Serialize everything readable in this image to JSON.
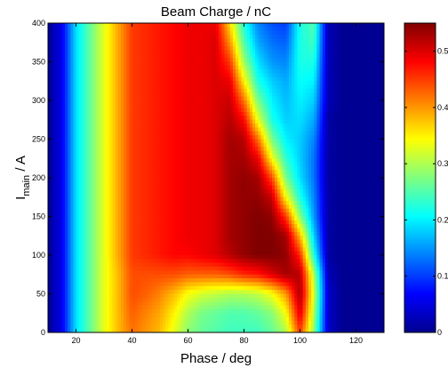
{
  "chart_data": {
    "type": "heatmap",
    "title": "Beam Charge / nC",
    "xlabel": "Phase / deg",
    "ylabel": {
      "main": "I",
      "subscript": "main",
      "suffix": " / A"
    },
    "xlim": [
      10,
      130
    ],
    "ylim": [
      0,
      400
    ],
    "xticks": [
      20,
      40,
      60,
      80,
      100,
      120
    ],
    "yticks": [
      0,
      50,
      100,
      150,
      200,
      250,
      300,
      350,
      400
    ],
    "colorbar": {
      "range": [
        0,
        0.55
      ],
      "ticks": [
        0,
        0.1,
        0.2,
        0.3,
        0.4,
        0.5
      ],
      "colormap": "jet"
    },
    "x": [
      10,
      15,
      20,
      25,
      30,
      35,
      40,
      45,
      50,
      55,
      60,
      65,
      70,
      75,
      80,
      85,
      90,
      95,
      100,
      105,
      110,
      115,
      120,
      125,
      130
    ],
    "y": [
      0,
      25,
      50,
      75,
      100,
      125,
      150,
      175,
      200,
      225,
      250,
      275,
      300,
      325,
      350,
      375,
      400
    ],
    "z": [
      [
        0.01,
        0.06,
        0.19,
        0.26,
        0.33,
        0.38,
        0.42,
        0.4,
        0.38,
        0.33,
        0.28,
        0.26,
        0.25,
        0.24,
        0.24,
        0.24,
        0.26,
        0.3,
        0.45,
        0.28,
        0.04,
        0.01,
        0.01,
        0.01,
        0.01
      ],
      [
        0.01,
        0.06,
        0.19,
        0.26,
        0.33,
        0.38,
        0.43,
        0.41,
        0.39,
        0.35,
        0.3,
        0.27,
        0.26,
        0.25,
        0.25,
        0.26,
        0.28,
        0.34,
        0.5,
        0.3,
        0.04,
        0.01,
        0.01,
        0.01,
        0.01
      ],
      [
        0.01,
        0.06,
        0.19,
        0.26,
        0.33,
        0.38,
        0.44,
        0.43,
        0.41,
        0.38,
        0.34,
        0.32,
        0.31,
        0.3,
        0.3,
        0.31,
        0.34,
        0.4,
        0.53,
        0.32,
        0.04,
        0.01,
        0.01,
        0.01,
        0.01
      ],
      [
        0.01,
        0.06,
        0.19,
        0.26,
        0.33,
        0.38,
        0.44,
        0.44,
        0.44,
        0.44,
        0.43,
        0.43,
        0.43,
        0.44,
        0.46,
        0.47,
        0.5,
        0.53,
        0.52,
        0.3,
        0.03,
        0.01,
        0.01,
        0.01,
        0.01
      ],
      [
        0.01,
        0.06,
        0.19,
        0.26,
        0.33,
        0.39,
        0.45,
        0.46,
        0.47,
        0.48,
        0.48,
        0.49,
        0.5,
        0.52,
        0.54,
        0.55,
        0.55,
        0.54,
        0.46,
        0.22,
        0.02,
        0.01,
        0.01,
        0.01,
        0.01
      ],
      [
        0.01,
        0.06,
        0.19,
        0.26,
        0.33,
        0.39,
        0.45,
        0.46,
        0.47,
        0.48,
        0.49,
        0.49,
        0.5,
        0.53,
        0.54,
        0.55,
        0.55,
        0.53,
        0.38,
        0.18,
        0.02,
        0.01,
        0.01,
        0.01,
        0.01
      ],
      [
        0.01,
        0.06,
        0.19,
        0.26,
        0.33,
        0.39,
        0.45,
        0.46,
        0.47,
        0.48,
        0.49,
        0.49,
        0.5,
        0.53,
        0.54,
        0.55,
        0.54,
        0.45,
        0.28,
        0.15,
        0.02,
        0.01,
        0.01,
        0.01,
        0.01
      ],
      [
        0.01,
        0.06,
        0.19,
        0.26,
        0.33,
        0.39,
        0.45,
        0.46,
        0.47,
        0.48,
        0.49,
        0.49,
        0.5,
        0.53,
        0.54,
        0.54,
        0.51,
        0.34,
        0.22,
        0.14,
        0.02,
        0.01,
        0.01,
        0.01,
        0.01
      ],
      [
        0.01,
        0.06,
        0.19,
        0.26,
        0.33,
        0.39,
        0.45,
        0.46,
        0.47,
        0.48,
        0.49,
        0.49,
        0.5,
        0.53,
        0.54,
        0.53,
        0.44,
        0.27,
        0.19,
        0.13,
        0.02,
        0.01,
        0.01,
        0.01,
        0.01
      ],
      [
        0.01,
        0.06,
        0.19,
        0.26,
        0.33,
        0.39,
        0.45,
        0.46,
        0.47,
        0.48,
        0.49,
        0.49,
        0.5,
        0.53,
        0.53,
        0.49,
        0.34,
        0.23,
        0.18,
        0.13,
        0.02,
        0.01,
        0.01,
        0.01,
        0.01
      ],
      [
        0.01,
        0.06,
        0.19,
        0.26,
        0.33,
        0.39,
        0.45,
        0.46,
        0.47,
        0.48,
        0.49,
        0.49,
        0.5,
        0.53,
        0.52,
        0.42,
        0.27,
        0.2,
        0.18,
        0.14,
        0.02,
        0.01,
        0.01,
        0.01,
        0.01
      ],
      [
        0.01,
        0.06,
        0.19,
        0.26,
        0.33,
        0.39,
        0.45,
        0.46,
        0.47,
        0.48,
        0.49,
        0.49,
        0.5,
        0.52,
        0.48,
        0.33,
        0.22,
        0.18,
        0.19,
        0.16,
        0.02,
        0.01,
        0.01,
        0.01,
        0.01
      ],
      [
        0.01,
        0.06,
        0.19,
        0.26,
        0.33,
        0.39,
        0.45,
        0.46,
        0.47,
        0.48,
        0.49,
        0.49,
        0.5,
        0.51,
        0.42,
        0.27,
        0.2,
        0.17,
        0.2,
        0.18,
        0.03,
        0.01,
        0.01,
        0.01,
        0.01
      ],
      [
        0.01,
        0.06,
        0.19,
        0.26,
        0.33,
        0.39,
        0.45,
        0.46,
        0.47,
        0.48,
        0.49,
        0.49,
        0.5,
        0.49,
        0.35,
        0.22,
        0.18,
        0.16,
        0.21,
        0.2,
        0.03,
        0.01,
        0.01,
        0.01,
        0.01
      ],
      [
        0.01,
        0.06,
        0.19,
        0.26,
        0.33,
        0.39,
        0.45,
        0.46,
        0.47,
        0.48,
        0.49,
        0.49,
        0.5,
        0.45,
        0.29,
        0.19,
        0.15,
        0.14,
        0.22,
        0.22,
        0.03,
        0.01,
        0.01,
        0.01,
        0.01
      ],
      [
        0.01,
        0.06,
        0.19,
        0.26,
        0.33,
        0.39,
        0.45,
        0.46,
        0.47,
        0.48,
        0.49,
        0.49,
        0.5,
        0.4,
        0.25,
        0.16,
        0.13,
        0.12,
        0.22,
        0.24,
        0.03,
        0.01,
        0.01,
        0.01,
        0.01
      ],
      [
        0.01,
        0.06,
        0.19,
        0.26,
        0.33,
        0.39,
        0.45,
        0.46,
        0.47,
        0.48,
        0.49,
        0.49,
        0.49,
        0.36,
        0.22,
        0.14,
        0.11,
        0.1,
        0.22,
        0.25,
        0.03,
        0.01,
        0.01,
        0.01,
        0.01
      ]
    ]
  }
}
